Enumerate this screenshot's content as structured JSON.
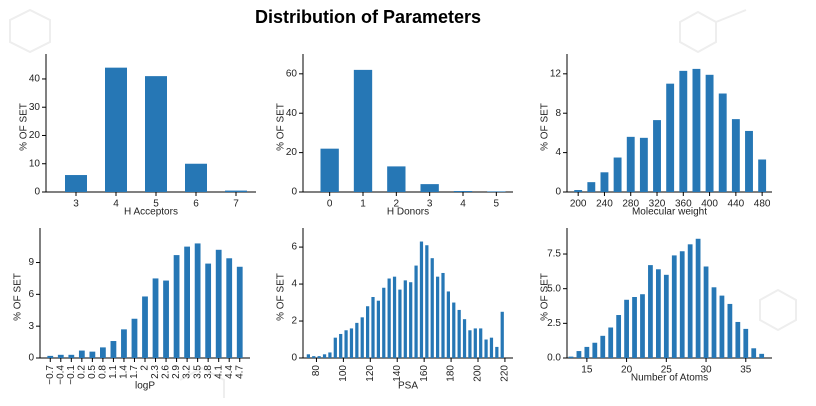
{
  "title": "Distribution of Parameters",
  "chart_data": [
    {
      "type": "bar",
      "ylabel": "% OF SET",
      "xlabel": "H Acceptors",
      "color": "#2677b5",
      "categories": [
        "3",
        "4",
        "5",
        "6",
        "7"
      ],
      "values": [
        6,
        44,
        41,
        10,
        0.5
      ],
      "ylim": [
        0,
        46
      ],
      "yticks": [
        0,
        10,
        20,
        30,
        40
      ]
    },
    {
      "type": "bar",
      "ylabel": "% OF SET",
      "xlabel": "H Donors",
      "color": "#2677b5",
      "categories": [
        "0",
        "1",
        "2",
        "3",
        "4",
        "5"
      ],
      "values": [
        22,
        62,
        13,
        4,
        0.5,
        0.3
      ],
      "ylim": [
        0,
        66
      ],
      "yticks": [
        0,
        20,
        40,
        60
      ]
    },
    {
      "type": "bar",
      "ylabel": "% OF SET",
      "xlabel": "Molecular weight",
      "color": "#2677b5",
      "x": [
        200,
        220,
        240,
        260,
        280,
        300,
        320,
        340,
        360,
        380,
        400,
        420,
        440,
        460,
        480
      ],
      "values": [
        0.2,
        1.0,
        2.0,
        3.5,
        5.6,
        5.5,
        7.3,
        11.0,
        12.3,
        12.5,
        11.9,
        10.0,
        7.4,
        6.2,
        3.3
      ],
      "xlim": [
        183,
        495
      ],
      "xticks": [
        200,
        240,
        280,
        320,
        360,
        400,
        440,
        480
      ],
      "ylim": [
        0,
        13.2
      ],
      "yticks": [
        0,
        4,
        8,
        12
      ]
    },
    {
      "type": "bar",
      "ylabel": "% OF SET",
      "xlabel": "logP",
      "color": "#2677b5",
      "rotate_xticks": true,
      "categories": [
        "−0.7",
        "−0.4",
        "−0.1",
        "0.2",
        "0.5",
        "0.8",
        "1.1",
        "1.4",
        "1.7",
        "2",
        "2.3",
        "2.6",
        "2.9",
        "3.2",
        "3.5",
        "3.8",
        "4.1",
        "4.4",
        "4.7"
      ],
      "values": [
        0.2,
        0.3,
        0.3,
        0.7,
        0.6,
        1.0,
        1.6,
        2.7,
        3.7,
        5.8,
        7.5,
        7.3,
        9.7,
        10.5,
        10.8,
        8.9,
        10.2,
        9.4,
        8.6
      ],
      "ylim": [
        0,
        11.5
      ],
      "yticks": [
        0,
        3,
        6,
        9
      ]
    },
    {
      "type": "bar",
      "ylabel": "% OF SET",
      "xlabel": "PSA",
      "color": "#2677b5",
      "rotate_xticks": true,
      "x": [
        74,
        78,
        82,
        86,
        90,
        94,
        98,
        102,
        106,
        110,
        114,
        118,
        122,
        126,
        130,
        134,
        138,
        142,
        146,
        150,
        154,
        158,
        162,
        166,
        170,
        174,
        178,
        182,
        186,
        190,
        194,
        198,
        202,
        206,
        210,
        214,
        218
      ],
      "values": [
        0.2,
        0.1,
        0.1,
        0.2,
        0.3,
        1.1,
        1.3,
        1.5,
        1.6,
        1.9,
        2.2,
        2.8,
        3.3,
        3.1,
        3.8,
        4.3,
        4.4,
        3.7,
        4.2,
        4.1,
        5.0,
        6.3,
        6.1,
        5.4,
        4.4,
        4.6,
        3.6,
        3.0,
        2.6,
        2.1,
        1.5,
        1.6,
        1.6,
        1.0,
        1.1,
        0.6,
        2.5
      ],
      "xlim": [
        70,
        226
      ],
      "xticks": [
        80,
        100,
        120,
        140,
        160,
        180,
        200,
        220
      ],
      "ylim": [
        0,
        6.6
      ],
      "yticks": [
        0,
        2,
        4,
        6
      ]
    },
    {
      "type": "bar",
      "ylabel": "% OF SET",
      "xlabel": "Number of Atoms",
      "color": "#2677b5",
      "x": [
        13,
        14,
        15,
        16,
        17,
        18,
        19,
        20,
        21,
        22,
        23,
        24,
        25,
        26,
        27,
        28,
        29,
        30,
        31,
        32,
        33,
        34,
        35,
        36,
        37
      ],
      "values": [
        0.1,
        0.5,
        0.8,
        1.1,
        1.6,
        2.2,
        3.1,
        4.2,
        4.4,
        4.6,
        6.7,
        6.4,
        6.0,
        7.4,
        7.7,
        8.2,
        8.6,
        6.6,
        5.1,
        4.5,
        3.9,
        2.6,
        2.1,
        0.7,
        0.3
      ],
      "xlim": [
        12.5,
        38.3
      ],
      "xticks": [
        15,
        20,
        25,
        30,
        35
      ],
      "ylim": [
        0,
        8.8
      ],
      "yticks": [
        {
          "value": 0,
          "label": "0.0"
        },
        2.5,
        {
          "value": 5,
          "label": "5.0"
        },
        7.5
      ]
    }
  ]
}
